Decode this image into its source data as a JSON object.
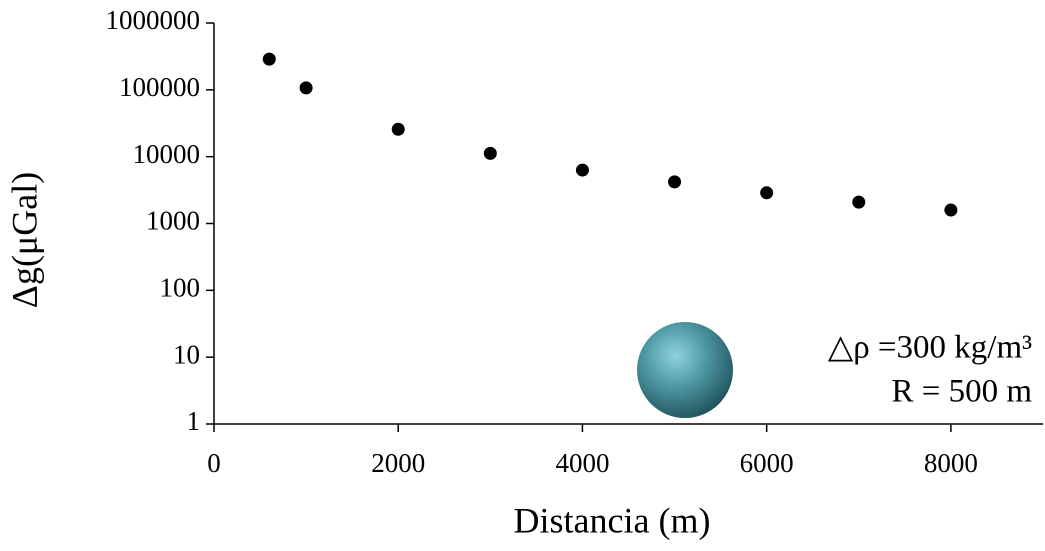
{
  "chart_data": {
    "type": "scatter",
    "x_label": "Distancia (m)",
    "y_label": "Δg(μGal)",
    "x": [
      600,
      1000,
      2000,
      3000,
      4000,
      5000,
      6000,
      7000,
      8000
    ],
    "series": [
      {
        "color": "#000000",
        "values": [
          288000,
          107000,
          25700,
          11200,
          6300,
          4200,
          2880,
          2090,
          1590
        ]
      }
    ],
    "xlim": [
      0,
      9000
    ],
    "xticks": [
      0,
      2000,
      4000,
      6000,
      8000
    ],
    "ylim": [
      1,
      1000000
    ],
    "yticks": [
      1,
      10,
      100,
      1000,
      10000,
      100000,
      1000000
    ],
    "yscale": "log",
    "annotations": [
      "△ρ =300 kg/m³",
      "R = 500 m"
    ]
  }
}
